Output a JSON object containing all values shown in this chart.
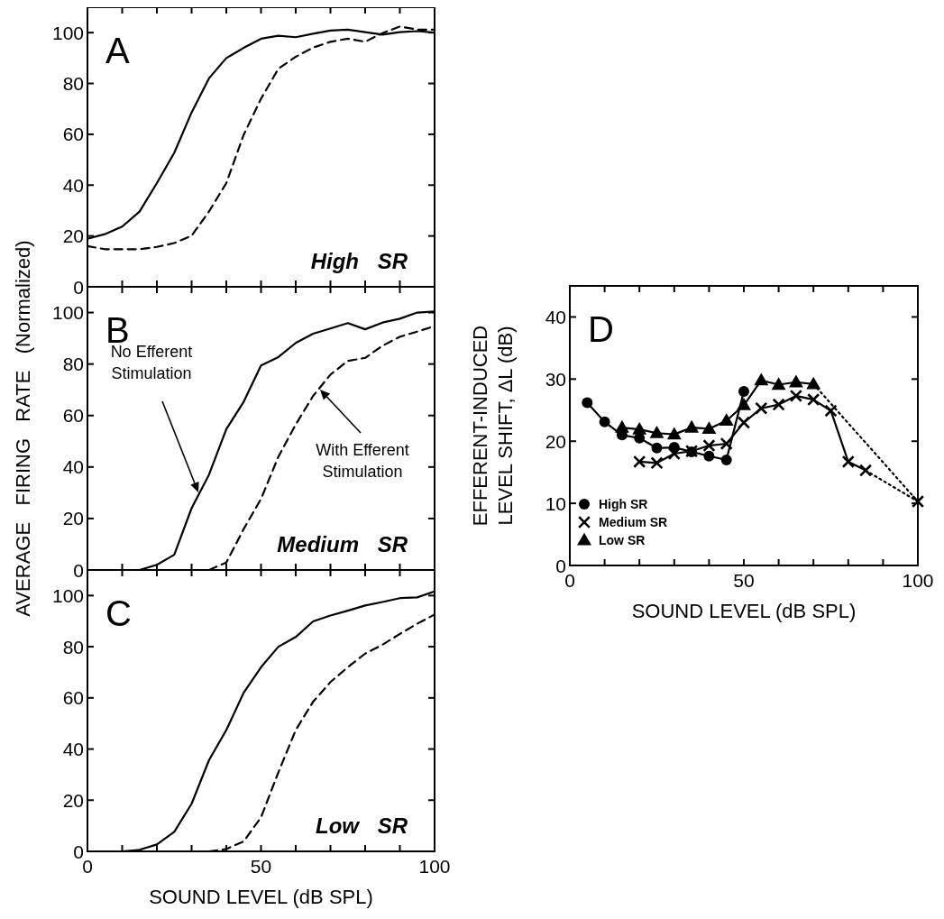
{
  "chart_data": [
    {
      "type": "line",
      "annotations": [
        "A",
        "High SR"
      ],
      "xlim": [
        0,
        100
      ],
      "ylim": [
        0,
        110
      ],
      "xticks": [
        0,
        {
          "value": 10,
          "label": null
        },
        {
          "value": 20,
          "label": null
        },
        {
          "value": 30,
          "label": null
        },
        {
          "value": 40,
          "label": null
        },
        50,
        {
          "value": 60,
          "label": null
        },
        {
          "value": 70,
          "label": null
        },
        {
          "value": 80,
          "label": null
        },
        {
          "value": 90,
          "label": null
        },
        100
      ],
      "yticks": [
        0,
        20,
        40,
        60,
        80,
        100
      ],
      "tick_labels": "y",
      "x": [
        0,
        5,
        10,
        15,
        20,
        25,
        30,
        35,
        40,
        45,
        50,
        55,
        60,
        65,
        70,
        75,
        80,
        85,
        90,
        95,
        100
      ],
      "series": [
        {
          "color": "#000000",
          "line_style": "solid",
          "marker": "none",
          "values": [
            18.9,
            20.7,
            23.7,
            29.6,
            40.8,
            52.7,
            68.6,
            82,
            90,
            94,
            97.6,
            98.8,
            98.2,
            99.6,
            100.8,
            101.2,
            100.2,
            99.2,
            100.2,
            100.6,
            100
          ]
        },
        {
          "color": "#000000",
          "line_style": "dashed",
          "marker": "none",
          "values": [
            16,
            14.8,
            14.8,
            14.8,
            15.7,
            17.2,
            20.1,
            29.6,
            40.8,
            59.8,
            74,
            85.8,
            90.5,
            94.1,
            96.4,
            97.6,
            96.4,
            99.8,
            102.4,
            101.2,
            101.2
          ]
        }
      ]
    },
    {
      "type": "line",
      "annotations": [
        "B",
        "Medium SR",
        "No Efferent Stimulation",
        "With Efferent Stimulation"
      ],
      "ylabel": "AVERAGE   FIRING   RATE   (Normalized)",
      "xlim": [
        0,
        100
      ],
      "ylim": [
        0,
        110
      ],
      "xticks": [
        0,
        {
          "value": 10,
          "label": null
        },
        {
          "value": 20,
          "label": null
        },
        {
          "value": 30,
          "label": null
        },
        {
          "value": 40,
          "label": null
        },
        50,
        {
          "value": 60,
          "label": null
        },
        {
          "value": 70,
          "label": null
        },
        {
          "value": 80,
          "label": null
        },
        {
          "value": 90,
          "label": null
        },
        100
      ],
      "yticks": [
        0,
        20,
        40,
        60,
        80,
        100
      ],
      "tick_labels": "y",
      "x": [
        0,
        5,
        10,
        15,
        20,
        25,
        30,
        35,
        40,
        45,
        50,
        55,
        60,
        65,
        70,
        75,
        80,
        85,
        90,
        95,
        100
      ],
      "series": [
        {
          "color": "#000000",
          "line_style": "solid",
          "marker": "none",
          "values": [
            0,
            0,
            0,
            0,
            2,
            5.9,
            24,
            37,
            54.7,
            65.3,
            79.4,
            82.7,
            88.2,
            91.8,
            93.8,
            95.9,
            93.5,
            96.1,
            97.6,
            100,
            100.4
          ]
        },
        {
          "color": "#000000",
          "line_style": "dashed",
          "marker": "none",
          "values": [
            0,
            0,
            0,
            0,
            0,
            0,
            0,
            0,
            2.9,
            15.9,
            27.6,
            44,
            56.5,
            67.6,
            75.9,
            81.2,
            82.4,
            87.1,
            90.6,
            92.6,
            94.7
          ]
        }
      ]
    },
    {
      "type": "line",
      "annotations": [
        "C",
        "Low SR"
      ],
      "xlabel": "SOUND LEVEL (dB SPL)",
      "xlim": [
        0,
        100
      ],
      "ylim": [
        0,
        110
      ],
      "xticks": [
        0,
        {
          "value": 10,
          "label": null
        },
        {
          "value": 20,
          "label": null
        },
        {
          "value": 30,
          "label": null
        },
        {
          "value": 40,
          "label": null
        },
        50,
        {
          "value": 60,
          "label": null
        },
        {
          "value": 70,
          "label": null
        },
        {
          "value": 80,
          "label": null
        },
        {
          "value": 90,
          "label": null
        },
        100
      ],
      "yticks": [
        0,
        20,
        40,
        60,
        80,
        100
      ],
      "x": [
        0,
        5,
        10,
        15,
        20,
        25,
        30,
        35,
        40,
        45,
        50,
        55,
        60,
        65,
        70,
        75,
        80,
        85,
        90,
        95,
        100
      ],
      "series": [
        {
          "color": "#000000",
          "line_style": "solid",
          "marker": "none",
          "values": [
            0,
            0,
            0,
            0.6,
            2.7,
            7.6,
            18.6,
            35.6,
            47.4,
            62,
            72,
            80,
            83.8,
            89.9,
            92.2,
            94.1,
            96.1,
            97.5,
            99,
            99.3,
            101.6
          ]
        },
        {
          "color": "#000000",
          "line_style": "dashed",
          "marker": "none",
          "values": [
            0,
            0,
            0,
            0,
            0,
            0,
            0,
            0,
            0.9,
            3.9,
            13.3,
            30.9,
            47.4,
            58.5,
            66.2,
            72,
            77.3,
            80.8,
            85,
            89,
            92.6
          ]
        }
      ]
    },
    {
      "type": "line",
      "annotations": [
        "D"
      ],
      "xlabel": "SOUND LEVEL (dB SPL)",
      "ylabel": "EFFERENT-INDUCED\nLEVEL SHIFT, ΔL (dB)",
      "xlim": [
        0,
        100
      ],
      "ylim": [
        0,
        45
      ],
      "xticks": [
        0,
        {
          "value": 10,
          "label": null
        },
        {
          "value": 20,
          "label": null
        },
        {
          "value": 30,
          "label": null
        },
        {
          "value": 40,
          "label": null
        },
        50,
        {
          "value": 60,
          "label": null
        },
        {
          "value": 70,
          "label": null
        },
        {
          "value": 80,
          "label": null
        },
        {
          "value": 90,
          "label": null
        },
        100
      ],
      "yticks": [
        0,
        10,
        20,
        30,
        40
      ],
      "legend": "bottom left",
      "series": [
        {
          "name": "High SR",
          "color": "#000000",
          "line_style": "solid",
          "marker": "circle",
          "x": [
            5,
            10,
            15,
            20,
            25,
            30,
            35,
            40,
            45,
            50
          ],
          "values": [
            26.2,
            23.1,
            21,
            20.5,
            18.9,
            19,
            18.3,
            17.6,
            17,
            28
          ]
        },
        {
          "name": "Medium SR",
          "color": "#000000",
          "line_style": "solid",
          "marker": "cross",
          "x": [
            20,
            25,
            30,
            35,
            40,
            45,
            50,
            55,
            60,
            65,
            70,
            75,
            80,
            85
          ],
          "values": [
            16.7,
            16.5,
            18,
            18.4,
            19.3,
            19.6,
            23,
            25.3,
            25.9,
            27.3,
            26.7,
            24.9,
            16.7,
            15.3
          ]
        },
        {
          "name": "Low SR",
          "color": "#000000",
          "line_style": "solid",
          "marker": "triangle",
          "x": [
            15,
            20,
            25,
            30,
            35,
            40,
            45,
            50,
            55,
            60,
            65,
            70
          ],
          "values": [
            22.2,
            21.9,
            21.3,
            21.1,
            22.2,
            22,
            23.3,
            25.8,
            29.8,
            29.1,
            29.5,
            29.2
          ]
        },
        {
          "color": "#000000",
          "line_style": "dotted",
          "marker": "none",
          "x": [
            70,
            100
          ],
          "values": [
            29.2,
            10.3
          ]
        },
        {
          "color": "#000000",
          "line_style": "dotted",
          "marker": "none",
          "x": [
            85,
            100
          ],
          "values": [
            15.3,
            10.3
          ]
        },
        {
          "type": "scatter",
          "color": "#000000",
          "marker": "cross",
          "x": [
            100
          ],
          "values": [
            10.3
          ]
        }
      ]
    }
  ]
}
